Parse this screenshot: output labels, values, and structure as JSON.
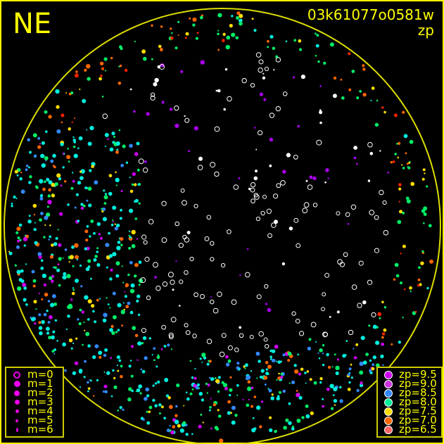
{
  "header": {
    "title": "NE",
    "frame_id": "03k61077o0581w",
    "mode": "zp"
  },
  "colors": {
    "frame": "#ffff00",
    "background": "#000000",
    "unmatched": "#ffffff"
  },
  "chart_data": {
    "type": "scatter",
    "title": "NE",
    "description_fields": {
      "frame": "03k61077o0581w",
      "color_by": "zp"
    },
    "grid": false,
    "magnitude_legend": {
      "placement": "bottom-left",
      "entries": [
        {
          "label": "m=0",
          "style": "open-ring"
        },
        {
          "label": "m=1",
          "style": "filled"
        },
        {
          "label": "m=2",
          "style": "filled"
        },
        {
          "label": "m=3",
          "style": "filled"
        },
        {
          "label": "m=4",
          "style": "filled"
        },
        {
          "label": "m=5",
          "style": "filled"
        },
        {
          "label": "m=6",
          "style": "filled"
        }
      ]
    },
    "zp_legend": {
      "placement": "bottom-right",
      "entries": [
        {
          "label": "zp=9.5",
          "color": "#cc00ee"
        },
        {
          "label": "zp=9.0",
          "color": "#cc33dd"
        },
        {
          "label": "zp=8.5",
          "color": "#3388ff"
        },
        {
          "label": "zp=8.0",
          "color": "#00ee99"
        },
        {
          "label": "zp=7.5",
          "color": "#ffdd00"
        },
        {
          "label": "zp=7.0",
          "color": "#ff6600"
        },
        {
          "label": "zp=6.5",
          "color": "#ff6666"
        }
      ]
    }
  }
}
